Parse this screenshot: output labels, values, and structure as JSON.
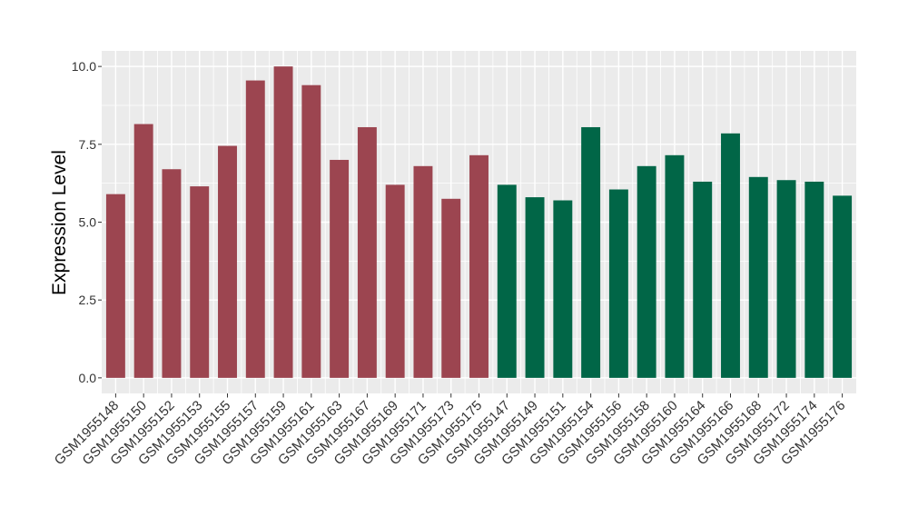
{
  "chart": {
    "background": "#FFFFFF",
    "panel_background": "#EBEBEB",
    "grid_color": "#FFFFFF",
    "tick_color": "#333333",
    "axis_text_color": "#333333",
    "axis_title_color": "#000000"
  },
  "chart_data": {
    "type": "bar",
    "title": "",
    "xlabel": "",
    "ylabel": "Expression Level",
    "ylim": [
      0,
      10.5
    ],
    "ytick_values": [
      0,
      2.5,
      5,
      7.5,
      10
    ],
    "ytick_labels": [
      "0.0",
      "2.5",
      "5.0",
      "7.5",
      "10.0"
    ],
    "grid": "major+minor",
    "legend_position": "none",
    "group_colors": {
      "group_a": "#9C4550",
      "group_b": "#016647"
    },
    "bars": [
      {
        "label": "GSM1955148",
        "value": 5.9,
        "group": "group_a"
      },
      {
        "label": "GSM1955150",
        "value": 8.15,
        "group": "group_a"
      },
      {
        "label": "GSM1955152",
        "value": 6.7,
        "group": "group_a"
      },
      {
        "label": "GSM1955153",
        "value": 6.15,
        "group": "group_a"
      },
      {
        "label": "GSM1955155",
        "value": 7.45,
        "group": "group_a"
      },
      {
        "label": "GSM1955157",
        "value": 9.55,
        "group": "group_a"
      },
      {
        "label": "GSM1955159",
        "value": 10.0,
        "group": "group_a"
      },
      {
        "label": "GSM1955161",
        "value": 9.4,
        "group": "group_a"
      },
      {
        "label": "GSM1955163",
        "value": 7.0,
        "group": "group_a"
      },
      {
        "label": "GSM1955167",
        "value": 8.05,
        "group": "group_a"
      },
      {
        "label": "GSM1955169",
        "value": 6.2,
        "group": "group_a"
      },
      {
        "label": "GSM1955171",
        "value": 6.8,
        "group": "group_a"
      },
      {
        "label": "GSM1955173",
        "value": 5.75,
        "group": "group_a"
      },
      {
        "label": "GSM1955175",
        "value": 7.15,
        "group": "group_a"
      },
      {
        "label": "GSM1955147",
        "value": 6.2,
        "group": "group_b"
      },
      {
        "label": "GSM1955149",
        "value": 5.8,
        "group": "group_b"
      },
      {
        "label": "GSM1955151",
        "value": 5.7,
        "group": "group_b"
      },
      {
        "label": "GSM1955154",
        "value": 8.05,
        "group": "group_b"
      },
      {
        "label": "GSM1955156",
        "value": 6.05,
        "group": "group_b"
      },
      {
        "label": "GSM1955158",
        "value": 6.8,
        "group": "group_b"
      },
      {
        "label": "GSM1955160",
        "value": 7.15,
        "group": "group_b"
      },
      {
        "label": "GSM1955164",
        "value": 6.3,
        "group": "group_b"
      },
      {
        "label": "GSM1955166",
        "value": 7.85,
        "group": "group_b"
      },
      {
        "label": "GSM1955168",
        "value": 6.45,
        "group": "group_b"
      },
      {
        "label": "GSM1955172",
        "value": 6.35,
        "group": "group_b"
      },
      {
        "label": "GSM1955174",
        "value": 6.3,
        "group": "group_b"
      },
      {
        "label": "GSM1955176",
        "value": 5.85,
        "group": "group_b"
      }
    ]
  }
}
